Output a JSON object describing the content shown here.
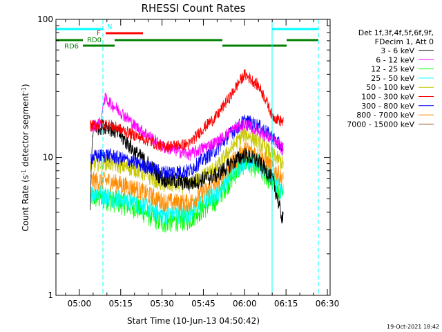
{
  "chart_data": {
    "type": "line",
    "title": "RHESSI Count Rates",
    "xlabel": "Start Time (10-Jun-13 04:50:42)",
    "ylabel": "Count Rate (s",
    "ylabel_sup": "-1",
    "ylabel_mid": " detector segment",
    "ylabel_sup2": "-1",
    "ylabel_end": ")",
    "y_scale": "log",
    "ylim": [
      1,
      100
    ],
    "xlim_minutes": [
      -8.5,
      91
    ],
    "x_ticks": [
      {
        "minutes": 0,
        "label": "05:00"
      },
      {
        "minutes": 15,
        "label": "05:15"
      },
      {
        "minutes": 30,
        "label": "05:30"
      },
      {
        "minutes": 45,
        "label": "05:45"
      },
      {
        "minutes": 60,
        "label": "06:00"
      },
      {
        "minutes": 75,
        "label": "06:15"
      },
      {
        "minutes": 90,
        "label": "06:30"
      }
    ],
    "y_ticks": [
      {
        "value": 1,
        "label": "1"
      },
      {
        "value": 10,
        "label": "10"
      },
      {
        "value": 100,
        "label": "100"
      }
    ],
    "legend_header": [
      "Det 1f,3f,4f,5f,6f,9f,",
      "FDecim 1, Att 0"
    ],
    "series": [
      {
        "name": "3 - 6 keV",
        "color": "#000000",
        "values": [
          [
            4,
            4.0
          ],
          [
            5,
            16.5
          ],
          [
            10,
            17
          ],
          [
            14,
            15
          ],
          [
            20,
            11
          ],
          [
            30,
            7
          ],
          [
            40,
            6.5
          ],
          [
            50,
            7.5
          ],
          [
            55,
            9
          ],
          [
            60,
            10.5
          ],
          [
            65,
            9.3
          ],
          [
            70,
            7
          ],
          [
            73,
            4
          ],
          [
            74,
            3.5
          ]
        ]
      },
      {
        "name": "6 - 12 keV",
        "color": "#ff00ff",
        "values": [
          [
            4,
            16.5
          ],
          [
            8,
            18
          ],
          [
            9,
            27
          ],
          [
            12,
            24
          ],
          [
            20,
            17
          ],
          [
            30,
            12
          ],
          [
            40,
            10.5
          ],
          [
            50,
            13
          ],
          [
            55,
            15.5
          ],
          [
            60,
            17.5
          ],
          [
            65,
            15.5
          ],
          [
            70,
            13.5
          ],
          [
            74,
            11.5
          ]
        ]
      },
      {
        "name": "12 - 25 keV",
        "color": "#00ff00",
        "values": [
          [
            4,
            5.2
          ],
          [
            10,
            5.0
          ],
          [
            20,
            4.4
          ],
          [
            30,
            3.4
          ],
          [
            40,
            3.6
          ],
          [
            50,
            5.0
          ],
          [
            55,
            7.0
          ],
          [
            60,
            9.3
          ],
          [
            65,
            8.5
          ],
          [
            70,
            6.5
          ],
          [
            74,
            5.0
          ]
        ]
      },
      {
        "name": "25 - 50 keV",
        "color": "#00ffff",
        "values": [
          [
            4,
            5.6
          ],
          [
            10,
            5.3
          ],
          [
            20,
            4.8
          ],
          [
            30,
            3.9
          ],
          [
            40,
            4.0
          ],
          [
            50,
            5.6
          ],
          [
            55,
            7.5
          ],
          [
            60,
            9.8
          ],
          [
            65,
            9.0
          ],
          [
            70,
            7.2
          ],
          [
            74,
            5.6
          ]
        ]
      },
      {
        "name": "50 - 100 keV",
        "color": "#c8c800",
        "values": [
          [
            4,
            9.0
          ],
          [
            10,
            9.2
          ],
          [
            20,
            8.3
          ],
          [
            30,
            6.4
          ],
          [
            40,
            6.3
          ],
          [
            50,
            8.5
          ],
          [
            55,
            11.5
          ],
          [
            60,
            15.0
          ],
          [
            65,
            13.0
          ],
          [
            70,
            10.5
          ],
          [
            74,
            9.0
          ]
        ]
      },
      {
        "name": "100 - 300 keV",
        "color": "#ff0000",
        "values": [
          [
            4,
            17
          ],
          [
            10,
            17.5
          ],
          [
            20,
            14.5
          ],
          [
            30,
            12
          ],
          [
            40,
            12.5
          ],
          [
            50,
            20
          ],
          [
            55,
            28
          ],
          [
            60,
            40
          ],
          [
            65,
            33
          ],
          [
            70,
            20
          ],
          [
            74,
            18
          ]
        ]
      },
      {
        "name": "300 - 800 keV",
        "color": "#0000ff",
        "values": [
          [
            4,
            10
          ],
          [
            10,
            10.5
          ],
          [
            20,
            9.2
          ],
          [
            30,
            7.8
          ],
          [
            40,
            8.0
          ],
          [
            50,
            11.5
          ],
          [
            55,
            15
          ],
          [
            60,
            18.5
          ],
          [
            65,
            17
          ],
          [
            70,
            14
          ],
          [
            74,
            11.5
          ]
        ]
      },
      {
        "name": "800 - 7000 keV",
        "color": "#ff8c00",
        "values": [
          [
            4,
            6.8
          ],
          [
            10,
            6.8
          ],
          [
            20,
            6.0
          ],
          [
            30,
            4.8
          ],
          [
            40,
            4.7
          ],
          [
            50,
            6.5
          ],
          [
            55,
            8.8
          ],
          [
            60,
            11.5
          ],
          [
            65,
            10.5
          ],
          [
            70,
            8.5
          ],
          [
            74,
            6.8
          ]
        ]
      },
      {
        "name": "7000 - 15000 keV",
        "color": "#8b5a2b",
        "values": []
      }
    ],
    "attenuator_states": [
      {
        "label": "N",
        "color": "#00ffff"
      },
      {
        "label": "F",
        "color": "#ff0000"
      },
      {
        "label": "RD0",
        "color": "#008000"
      },
      {
        "label": "RD6",
        "color": "#008000"
      }
    ],
    "annotation_timestamp": "19-Oct-2021 18:42"
  }
}
